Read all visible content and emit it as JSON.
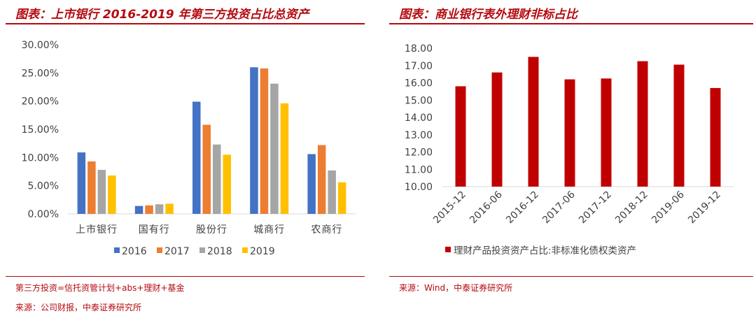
{
  "left": {
    "title": "图表：上市银行 2016-2019 年第三方投资占比总资产",
    "note_definition": "第三方投资=信托资管计划+abs+理财+基金",
    "source": "来源：公司财报，中泰证券研究所"
  },
  "right": {
    "title": "图表：商业银行表外理财非标占比",
    "source": "来源：Wind，中泰证券研究所"
  },
  "chart_data": [
    {
      "type": "bar",
      "title": "",
      "categories": [
        "上市银行",
        "国有行",
        "股份行",
        "城商行",
        "农商行"
      ],
      "series": [
        {
          "name": "2016",
          "color": "#4472c4",
          "values": [
            10.9,
            1.4,
            19.9,
            26.0,
            10.6
          ]
        },
        {
          "name": "2017",
          "color": "#ed7d31",
          "values": [
            9.3,
            1.5,
            15.8,
            25.8,
            12.2
          ]
        },
        {
          "name": "2018",
          "color": "#a5a5a5",
          "values": [
            7.8,
            1.7,
            12.3,
            23.1,
            7.7
          ]
        },
        {
          "name": "2019",
          "color": "#ffc000",
          "values": [
            6.8,
            1.8,
            10.5,
            19.6,
            5.6
          ]
        }
      ],
      "ylim": [
        0,
        30
      ],
      "yticks": [
        "0.00%",
        "5.00%",
        "10.00%",
        "15.00%",
        "20.00%",
        "25.00%",
        "30.00%"
      ],
      "legend_position": "bottom",
      "grid": false
    },
    {
      "type": "bar",
      "title": "",
      "categories": [
        "2015-12",
        "2016-06",
        "2016-12",
        "2017-06",
        "2017-12",
        "2018-12",
        "2019-06",
        "2019-12"
      ],
      "series": [
        {
          "name": "理财产品投资资产占比:非标准化债权类资产",
          "color": "#c00000",
          "values": [
            15.8,
            16.6,
            17.5,
            16.2,
            16.25,
            17.25,
            17.05,
            15.7
          ]
        }
      ],
      "ylim": [
        10,
        18
      ],
      "yticks": [
        "10.00",
        "11.00",
        "12.00",
        "13.00",
        "14.00",
        "15.00",
        "16.00",
        "17.00",
        "18.00"
      ],
      "legend_position": "bottom",
      "grid": false
    }
  ]
}
